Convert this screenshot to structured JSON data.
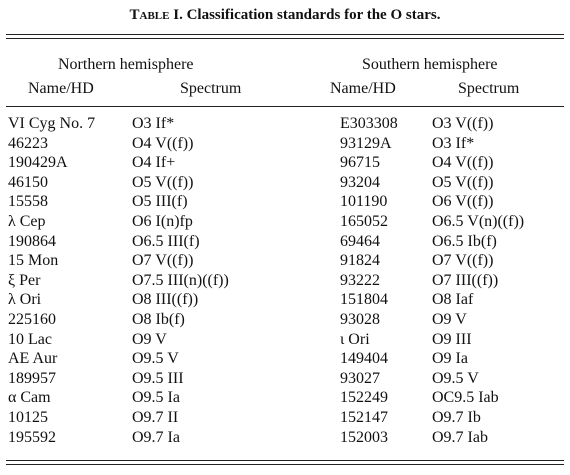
{
  "caption": {
    "label": "Table I.",
    "text": "Classification standards for the O stars."
  },
  "table": {
    "groups": [
      "Northern hemisphere",
      "Southern hemisphere"
    ],
    "columns": [
      "Name/HD",
      "Spectrum",
      "Name/HD",
      "Spectrum"
    ],
    "rows": [
      [
        "VI Cyg No. 7",
        "O3 If*",
        "E303308",
        "O3 V((f))"
      ],
      [
        "46223",
        "O4 V((f))",
        "93129A",
        "O3 If*"
      ],
      [
        "190429A",
        "O4 If+",
        "96715",
        "O4 V((f))"
      ],
      [
        "46150",
        "O5 V((f))",
        "93204",
        "O5 V((f))"
      ],
      [
        "15558",
        "O5 III(f)",
        "101190",
        "O6 V((f))"
      ],
      [
        "λ Cep",
        "O6 I(n)fp",
        "165052",
        "O6.5 V(n)((f))"
      ],
      [
        "190864",
        "O6.5 III(f)",
        "69464",
        "O6.5 Ib(f)"
      ],
      [
        "15 Mon",
        "O7 V((f))",
        "91824",
        "O7 V((f))"
      ],
      [
        "ξ Per",
        "O7.5 III(n)((f))",
        "93222",
        "O7 III((f))"
      ],
      [
        "λ Ori",
        "O8 III((f))",
        "151804",
        "O8 Iaf"
      ],
      [
        "225160",
        "O8 Ib(f)",
        "93028",
        "O9 V"
      ],
      [
        "10 Lac",
        "O9 V",
        "ι Ori",
        "O9 III"
      ],
      [
        "AE Aur",
        "O9.5 V",
        "149404",
        "O9 Ia"
      ],
      [
        "189957",
        "O9.5 III",
        "93027",
        "O9.5 V"
      ],
      [
        "α Cam",
        "O9.5 Ia",
        "152249",
        "OC9.5 Iab"
      ],
      [
        "10125",
        "O9.7 II",
        "152147",
        "O9.7 Ib"
      ],
      [
        "195592",
        "O9.7 Ia",
        "152003",
        "O9.7 Iab"
      ]
    ]
  }
}
